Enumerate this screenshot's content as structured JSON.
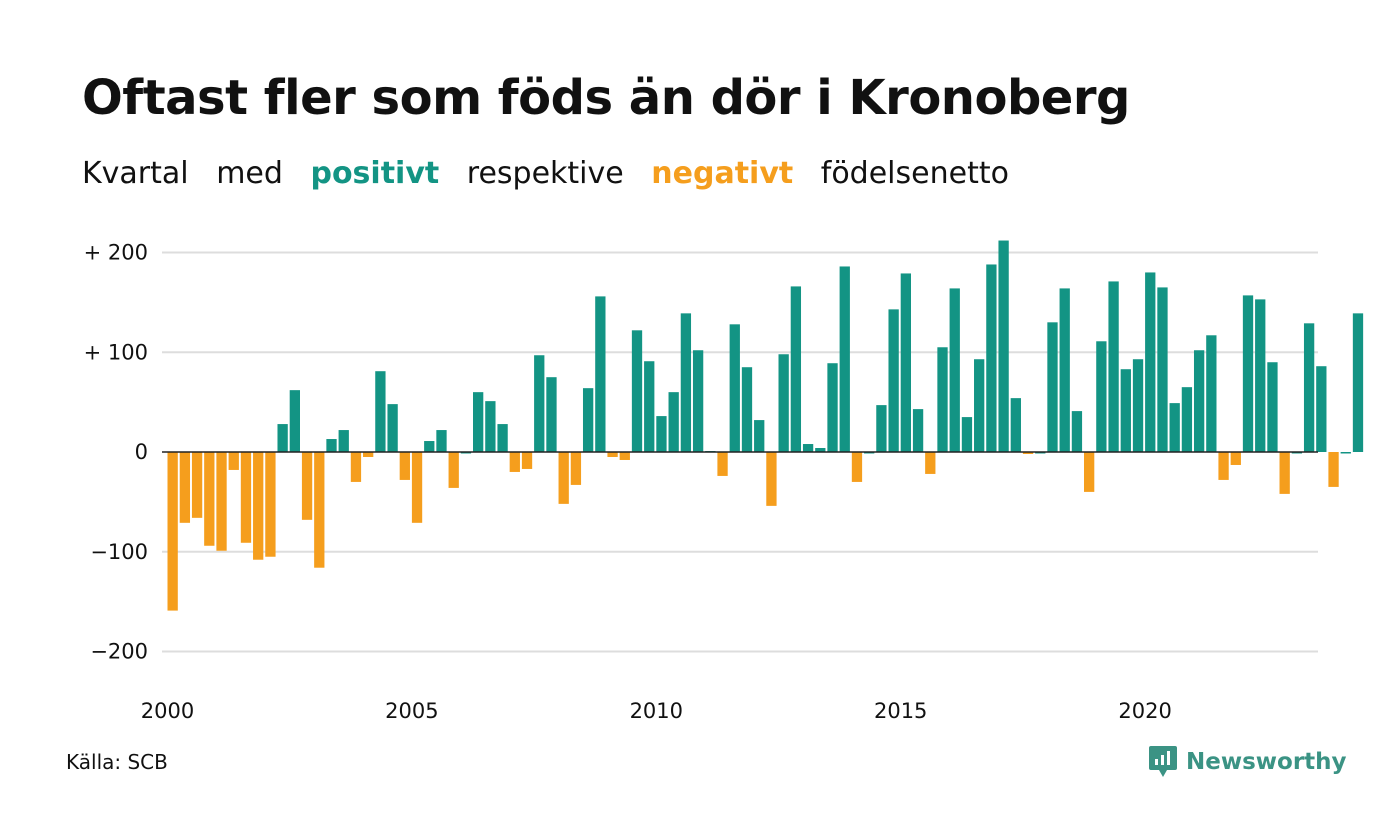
{
  "title": "Oftast fler som föds än dör i Kronoberg",
  "subtitle": {
    "part1": "Kvartal",
    "part2": "med",
    "positive_word": "positivt",
    "part3": "respektive",
    "negative_word": "negativt",
    "part4": "födelsenetto"
  },
  "source": "Källa: SCB",
  "brand": "Newsworthy",
  "colors": {
    "positive": "#139484",
    "negative": "#f59e1d",
    "grid": "#dddddd",
    "zero": "#222222",
    "brand": "#3b9384"
  },
  "chart_data": {
    "type": "bar",
    "x_start_year": 2000,
    "x_start_quarter": 1,
    "values": [
      -159,
      -71,
      -66,
      -94,
      -99,
      -18,
      -91,
      -108,
      -105,
      28,
      62,
      -68,
      -116,
      13,
      22,
      -30,
      -5,
      81,
      48,
      -28,
      -71,
      11,
      22,
      -36,
      0,
      60,
      51,
      28,
      -20,
      -17,
      97,
      75,
      -52,
      -33,
      64,
      156,
      -5,
      -8,
      122,
      91,
      36,
      60,
      139,
      102,
      1,
      -24,
      128,
      85,
      32,
      -54,
      98,
      166,
      8,
      4,
      89,
      186,
      -30,
      0,
      47,
      143,
      179,
      43,
      -22,
      105,
      164,
      35,
      93,
      188,
      212,
      54,
      -2,
      0,
      130,
      164,
      41,
      -40,
      111,
      171,
      83,
      93,
      180,
      165,
      49,
      65,
      102,
      117,
      -28,
      -13,
      157,
      153,
      90,
      -42,
      0,
      129,
      86,
      -35,
      0,
      139
    ],
    "ylim": [
      -220,
      220
    ],
    "y_ticks": [
      200,
      100,
      0,
      -100,
      -200
    ],
    "y_tick_labels": [
      "+ 200",
      "+ 100",
      "0",
      "−100",
      "−200"
    ],
    "x_ticks": [
      2000,
      2005,
      2010,
      2015,
      2020
    ],
    "x_tick_labels": [
      "2000",
      "2005",
      "2010",
      "2015",
      "2020"
    ],
    "grid": true
  }
}
